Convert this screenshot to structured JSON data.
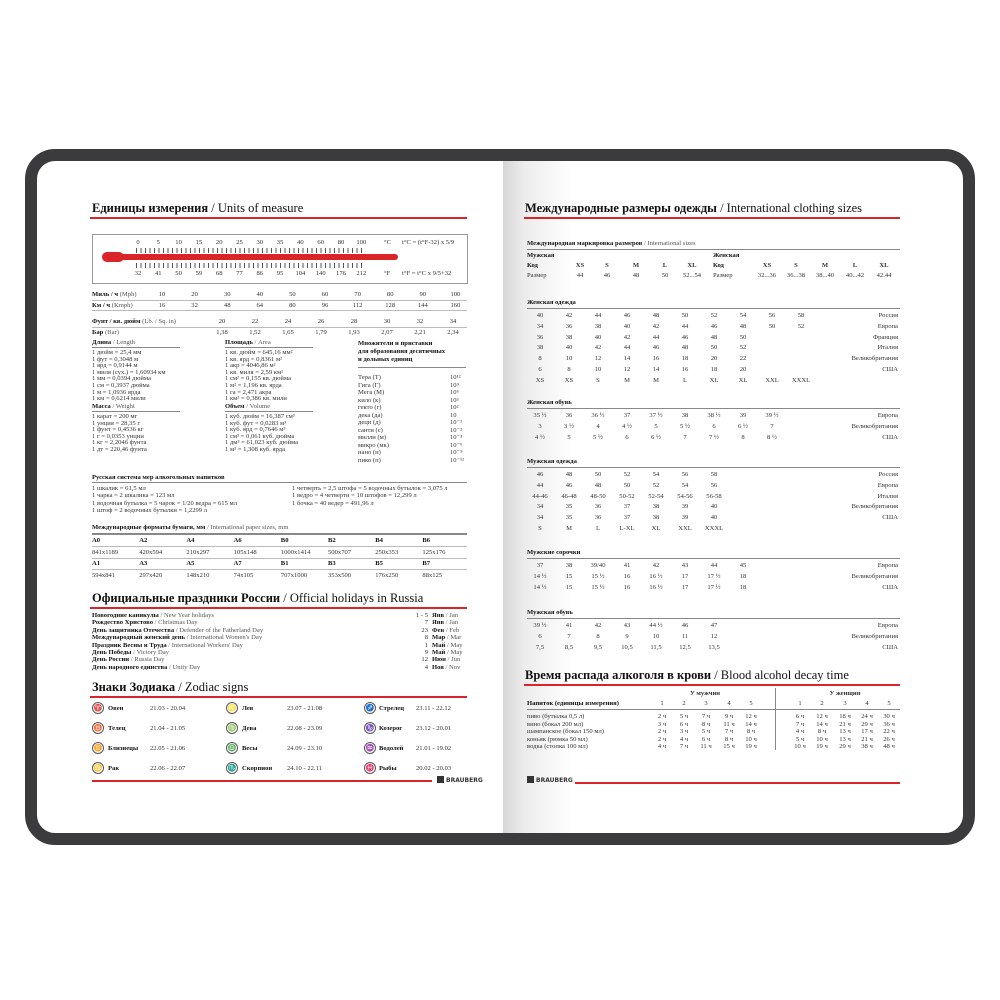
{
  "brand": "BRAUBERG",
  "left": {
    "units": {
      "title_ru": "Единицы измерения",
      "title_en": "/ Units of measure",
      "thermo": {
        "celsius": [
          "0",
          "5",
          "10",
          "15",
          "20",
          "25",
          "30",
          "35",
          "40",
          "60",
          "80",
          "100"
        ],
        "fahrenheit": [
          "32",
          "41",
          "50",
          "59",
          "68",
          "77",
          "86",
          "95",
          "104",
          "140",
          "176",
          "212"
        ],
        "c_unit": "°C",
        "f_unit": "°F",
        "formula_c": "t°C = (t°F-32) x 5/9",
        "formula_f": "t°F = t°C x 9/5+32"
      },
      "speed": {
        "mph_ru": "Миль / ч",
        "mph_en": "(Mph)",
        "mph": [
          "10",
          "20",
          "30",
          "40",
          "50",
          "60",
          "70",
          "80",
          "90",
          "100"
        ],
        "kmh_ru": "Км / ч",
        "kmh_en": "(Kmph)",
        "kmh": [
          "16",
          "32",
          "48",
          "64",
          "80",
          "96",
          "112",
          "128",
          "144",
          "160"
        ]
      },
      "pressure": {
        "psi_ru": "Фунт / кв. дюйм",
        "psi_en": "(Lb. / Sq. in)",
        "psi": [
          "20",
          "22",
          "24",
          "26",
          "28",
          "30",
          "32",
          "34"
        ],
        "bar_ru": "Бар",
        "bar_en": "(Bar)",
        "bar": [
          "1,38",
          "1,52",
          "1,65",
          "1,79",
          "1,93",
          "2,07",
          "2,21",
          "2,34"
        ]
      },
      "length": {
        "title_ru": "Длина",
        "title_en": "/ Length",
        "items": [
          "1 дюйм = 25,4 мм",
          "1 фут = 0,3048 м",
          "1 ярд = 0,9144 м",
          "1 миля (сух.) = 1,60934 км",
          "1 мм = 0,0394 дюйма",
          "1 см = 0,3937 дюйма",
          "1 м = 1,0936 ярда",
          "1 км = 0,6214 мили"
        ]
      },
      "mass": {
        "title_ru": "Масса",
        "title_en": "/ Weight",
        "items": [
          "1 карат = 200 мг",
          "1 унция = 28,35 г",
          "1 фунт = 0,4536 кг",
          "1 г = 0,0353 унции",
          "1 кг = 2,2046 фунта",
          "1 дт = 220,46 фунта"
        ]
      },
      "area": {
        "title_ru": "Площадь",
        "title_en": "/ Area",
        "items": [
          "1 кв. дюйм = 645,16 мм²",
          "1 кв. ярд = 0,8361 м²",
          "1 акр = 4046,86 м²",
          "1 кв. миля = 2,59 км²",
          "1 см² = 0,155 кв. дюйма",
          "1 м² = 1,196 кв. ярда",
          "1 га = 2,471 акра",
          "1 км² = 0,386 кв. мили"
        ]
      },
      "volume": {
        "title_ru": "Объем",
        "title_en": "/ Volume",
        "items": [
          "1 куб. дюйм = 16,387 см³",
          "1 куб. фут = 0,0283 м³",
          "1 куб. ярд = 0,7646 м³",
          "1 см³ = 0,061 куб. дюйма",
          "1 дм³ = 61,023 куб. дюйма",
          "1 м³ = 1,308 куб. ярда"
        ]
      },
      "prefixes": {
        "title": [
          "Множители и приставки",
          "для образования десятичных",
          "и дольных единиц"
        ],
        "items": [
          {
            "name": "Тера (Т)",
            "value": "10¹²"
          },
          {
            "name": "Гига (Г)",
            "value": "10⁹"
          },
          {
            "name": "Мега (М)",
            "value": "10⁶"
          },
          {
            "name": "кило (к)",
            "value": "10³"
          },
          {
            "name": "гекто (г)",
            "value": "10²"
          },
          {
            "name": "дека (да)",
            "value": "10"
          },
          {
            "name": "деци (д)",
            "value": "10⁻¹"
          },
          {
            "name": "санти (с)",
            "value": "10⁻²"
          },
          {
            "name": "милли (м)",
            "value": "10⁻³"
          },
          {
            "name": "микро (мк)",
            "value": "10⁻⁶"
          },
          {
            "name": "нано (н)",
            "value": "10⁻⁹"
          },
          {
            "name": "пико (п)",
            "value": "10⁻¹²"
          }
        ]
      }
    },
    "alcohol_measures": {
      "title": "Русская система мер алкогольных напитков",
      "left": [
        "1 шкалик = 61,5 мл",
        "1 чарка = 2 шкалика = 123 мл",
        "1 водочная бутылка = 5 чарок = 1/20 ведра = 615 мл",
        "1 штоф = 2 водочных бутылки = 1,2299 л"
      ],
      "right": [
        "1 четверть = 2,5 штофа = 5 водочных бутылок = 3,075 л",
        "1 ведро = 4 четверти = 10 штофов = 12,299 л",
        "1 бочка = 40 ведер = 491,96 л"
      ]
    },
    "paper": {
      "title_ru": "Международные форматы бумаги, мм",
      "title_en": "/ International paper sizes, mm",
      "rows": [
        [
          "A0",
          "A2",
          "A4",
          "A6",
          "B0",
          "B2",
          "B4",
          "B6"
        ],
        [
          "841x1189",
          "420x594",
          "210x297",
          "105x148",
          "1000x1414",
          "500x707",
          "250x353",
          "125x176"
        ],
        [
          "A1",
          "A3",
          "A5",
          "A7",
          "B1",
          "B3",
          "B5",
          "B7"
        ],
        [
          "594x841",
          "297x420",
          "148x210",
          "74x105",
          "707x1000",
          "353x500",
          "176x250",
          "88x125"
        ]
      ]
    },
    "holidays": {
      "title_ru": "Официальные праздники России",
      "title_en": "/ Official holidays in Russia",
      "items": [
        {
          "ru": "Новогодние каникулы",
          "en": "/ New Year holidays",
          "day": "1 - 5",
          "month_ru": "Янв",
          "month_en": "/ Jan"
        },
        {
          "ru": "Рождество Христово",
          "en": "/ Christmas Day",
          "day": "7",
          "month_ru": "Янв",
          "month_en": "/ Jan"
        },
        {
          "ru": "День защитника Отечества",
          "en": "/ Defender of the Fatherland Day",
          "day": "23",
          "month_ru": "Фев",
          "month_en": "/ Feb"
        },
        {
          "ru": "Международный женский день",
          "en": "/ International Women's Day",
          "day": "8",
          "month_ru": "Мар",
          "month_en": "/ Mar"
        },
        {
          "ru": "Праздник Весны и Труда",
          "en": "/ International Workers' Day",
          "day": "1",
          "month_ru": "Май",
          "month_en": "/ May"
        },
        {
          "ru": "День Победы",
          "en": "/ Victory Day",
          "day": "9",
          "month_ru": "Май",
          "month_en": "/ May"
        },
        {
          "ru": "День России",
          "en": "/ Russia Day",
          "day": "12",
          "month_ru": "Июн",
          "month_en": "/ Jun"
        },
        {
          "ru": "День народного единства",
          "en": "/ Unity Day",
          "day": "4",
          "month_ru": "Ноя",
          "month_en": "/ Nov"
        }
      ]
    },
    "zodiac": {
      "title_ru": "Знаки Зодиака",
      "title_en": "/ Zodiac signs",
      "signs": [
        {
          "name": "Овен",
          "dates": "21.03 - 20.04",
          "icon": "♈"
        },
        {
          "name": "Телец",
          "dates": "21.04 - 21.05",
          "icon": "♉"
        },
        {
          "name": "Близнецы",
          "dates": "22.05 - 21.06",
          "icon": "♊"
        },
        {
          "name": "Рак",
          "dates": "22.06 - 22.07",
          "icon": "♋"
        },
        {
          "name": "Лев",
          "dates": "23.07 - 21.08",
          "icon": "♌"
        },
        {
          "name": "Дева",
          "dates": "22.08 - 23.09",
          "icon": "♍"
        },
        {
          "name": "Весы",
          "dates": "24.09 - 23.10",
          "icon": "♎"
        },
        {
          "name": "Скорпион",
          "dates": "24.10 - 22.11",
          "icon": "♏"
        },
        {
          "name": "Стрелец",
          "dates": "23.11 - 22.12",
          "icon": "♐"
        },
        {
          "name": "Козерог",
          "dates": "23.12 - 20.01",
          "icon": "♑"
        },
        {
          "name": "Водолей",
          "dates": "21.01 - 19.02",
          "icon": "♒"
        },
        {
          "name": "Рыбы",
          "dates": "20.02 - 20.03",
          "icon": "♓"
        }
      ]
    }
  },
  "right": {
    "clothing": {
      "title_ru": "Международные размеры одежды",
      "title_en": "/ International clothing sizes",
      "intl": {
        "title_ru": "Международная маркировка размеров",
        "title_en": "/ International sizes",
        "men_label": "Мужская",
        "women_label": "Женская",
        "code_label": "Код",
        "size_label": "Размер",
        "men_codes": [
          "XS",
          "S",
          "M",
          "L",
          "XL"
        ],
        "men_sizes": [
          "44",
          "46",
          "48",
          "50",
          "52...54"
        ],
        "women_codes": [
          "XS",
          "S",
          "M",
          "L",
          "XL"
        ],
        "women_sizes": [
          "32...36",
          "36...38",
          "38...40",
          "40...42",
          "42.44"
        ]
      },
      "tables": [
        {
          "title": "Женская одежда",
          "rows": [
            {
              "values": [
                "40",
                "42",
                "44",
                "46",
                "48",
                "50",
                "52",
                "54",
                "56",
                "58"
              ],
              "country": "Россия"
            },
            {
              "values": [
                "34",
                "36",
                "38",
                "40",
                "42",
                "44",
                "46",
                "48",
                "50",
                "52"
              ],
              "country": "Европа"
            },
            {
              "values": [
                "36",
                "38",
                "40",
                "42",
                "44",
                "46",
                "48",
                "50"
              ],
              "country": "Франция"
            },
            {
              "values": [
                "38",
                "40",
                "42",
                "44",
                "46",
                "48",
                "50",
                "52"
              ],
              "country": "Италия"
            },
            {
              "values": [
                "8",
                "10",
                "12",
                "14",
                "16",
                "18",
                "20",
                "22"
              ],
              "country": "Великобритания"
            },
            {
              "values": [
                "6",
                "8",
                "10",
                "12",
                "14",
                "16",
                "18",
                "20"
              ],
              "country": "США"
            },
            {
              "values": [
                "XS",
                "XS",
                "S",
                "M",
                "M",
                "L",
                "XL",
                "XL",
                "XXL",
                "XXXL"
              ],
              "country": ""
            }
          ]
        },
        {
          "title": "Женская обувь",
          "rows": [
            {
              "values": [
                "35 ½",
                "36",
                "36 ½",
                "37",
                "37 ½",
                "38",
                "38 ½",
                "39",
                "39 ½"
              ],
              "country": "Европа"
            },
            {
              "values": [
                "3",
                "3 ½",
                "4",
                "4 ½",
                "5",
                "5 ½",
                "6",
                "6 ½",
                "7"
              ],
              "country": "Великобритания"
            },
            {
              "values": [
                "4 ½",
                "5",
                "5 ½",
                "6",
                "6 ½",
                "7",
                "7 ½",
                "8",
                "8 ½"
              ],
              "country": "США"
            }
          ]
        },
        {
          "title": "Мужская одежда",
          "rows": [
            {
              "values": [
                "46",
                "48",
                "50",
                "52",
                "54",
                "56",
                "58"
              ],
              "country": "Россия"
            },
            {
              "values": [
                "44",
                "46",
                "48",
                "50",
                "52",
                "54",
                "56"
              ],
              "country": "Европа"
            },
            {
              "values": [
                "44-46",
                "46-48",
                "48-50",
                "50-52",
                "52-54",
                "54-56",
                "56-58"
              ],
              "country": "Италия"
            },
            {
              "values": [
                "34",
                "35",
                "36",
                "37",
                "38",
                "39",
                "40"
              ],
              "country": "Великобритания"
            },
            {
              "values": [
                "34",
                "35",
                "36",
                "37",
                "38",
                "39",
                "40"
              ],
              "country": "США"
            },
            {
              "values": [
                "S",
                "M",
                "L",
                "L-XL",
                "XL",
                "XXL",
                "XXXL"
              ],
              "country": ""
            }
          ]
        },
        {
          "title": "Мужские сорочки",
          "rows": [
            {
              "values": [
                "37",
                "38",
                "39/40",
                "41",
                "42",
                "43",
                "44",
                "45"
              ],
              "country": "Европа"
            },
            {
              "values": [
                "14 ½",
                "15",
                "15 ½",
                "16",
                "16 ½",
                "17",
                "17 ½",
                "18"
              ],
              "country": "Великобритания"
            },
            {
              "values": [
                "14 ½",
                "15",
                "15 ½",
                "16",
                "16 ½",
                "17",
                "17 ½",
                "18"
              ],
              "country": "США"
            }
          ]
        },
        {
          "title": "Мужская обувь",
          "rows": [
            {
              "values": [
                "39 ½",
                "41",
                "42",
                "43",
                "44 ½",
                "46",
                "47"
              ],
              "country": "Европа"
            },
            {
              "values": [
                "6",
                "7",
                "8",
                "9",
                "10",
                "11",
                "12"
              ],
              "country": "Великобритания"
            },
            {
              "values": [
                "7,5",
                "8,5",
                "9,5",
                "10,5",
                "11,5",
                "12,5",
                "13,5"
              ],
              "country": "США"
            }
          ]
        }
      ]
    },
    "alcohol_decay": {
      "title_ru": "Время распада алкоголя в крови",
      "title_en": "/ Blood alcohol decay time",
      "men_label": "У мужчин",
      "women_label": "У женщин",
      "drink_header": "Напиток (единицы измерения)",
      "cols": [
        "1",
        "2",
        "3",
        "4",
        "5"
      ],
      "rows": [
        {
          "drink": "пиво (бутылка 0,5 л)",
          "men": [
            "2 ч",
            "5 ч",
            "7 ч",
            "9 ч",
            "12 ч"
          ],
          "women": [
            "6 ч",
            "12 ч",
            "18 ч",
            "24 ч",
            "30 ч"
          ]
        },
        {
          "drink": "вино (бокал 200 мл)",
          "men": [
            "3 ч",
            "6 ч",
            "8 ч",
            "11 ч",
            "14 ч"
          ],
          "women": [
            "7 ч",
            "14 ч",
            "21 ч",
            "29 ч",
            "36 ч"
          ]
        },
        {
          "drink": "шампанское (бокал 150 мл)",
          "men": [
            "2 ч",
            "3 ч",
            "5 ч",
            "7 ч",
            "8 ч"
          ],
          "women": [
            "4 ч",
            "8 ч",
            "13 ч",
            "17 ч",
            "22 ч"
          ]
        },
        {
          "drink": "коньяк (рюмка 50 мл)",
          "men": [
            "2 ч",
            "4 ч",
            "6 ч",
            "8 ч",
            "10 ч"
          ],
          "women": [
            "5 ч",
            "10 ч",
            "13 ч",
            "21 ч",
            "26 ч"
          ]
        },
        {
          "drink": "водка (стопка 100 мл)",
          "men": [
            "4 ч",
            "7 ч",
            "11 ч",
            "15 ч",
            "19 ч"
          ],
          "women": [
            "10 ч",
            "19 ч",
            "29 ч",
            "38 ч",
            "48 ч"
          ]
        }
      ]
    }
  },
  "colors": {
    "accent": "#d9242a",
    "cover": "#3b3b3d"
  }
}
